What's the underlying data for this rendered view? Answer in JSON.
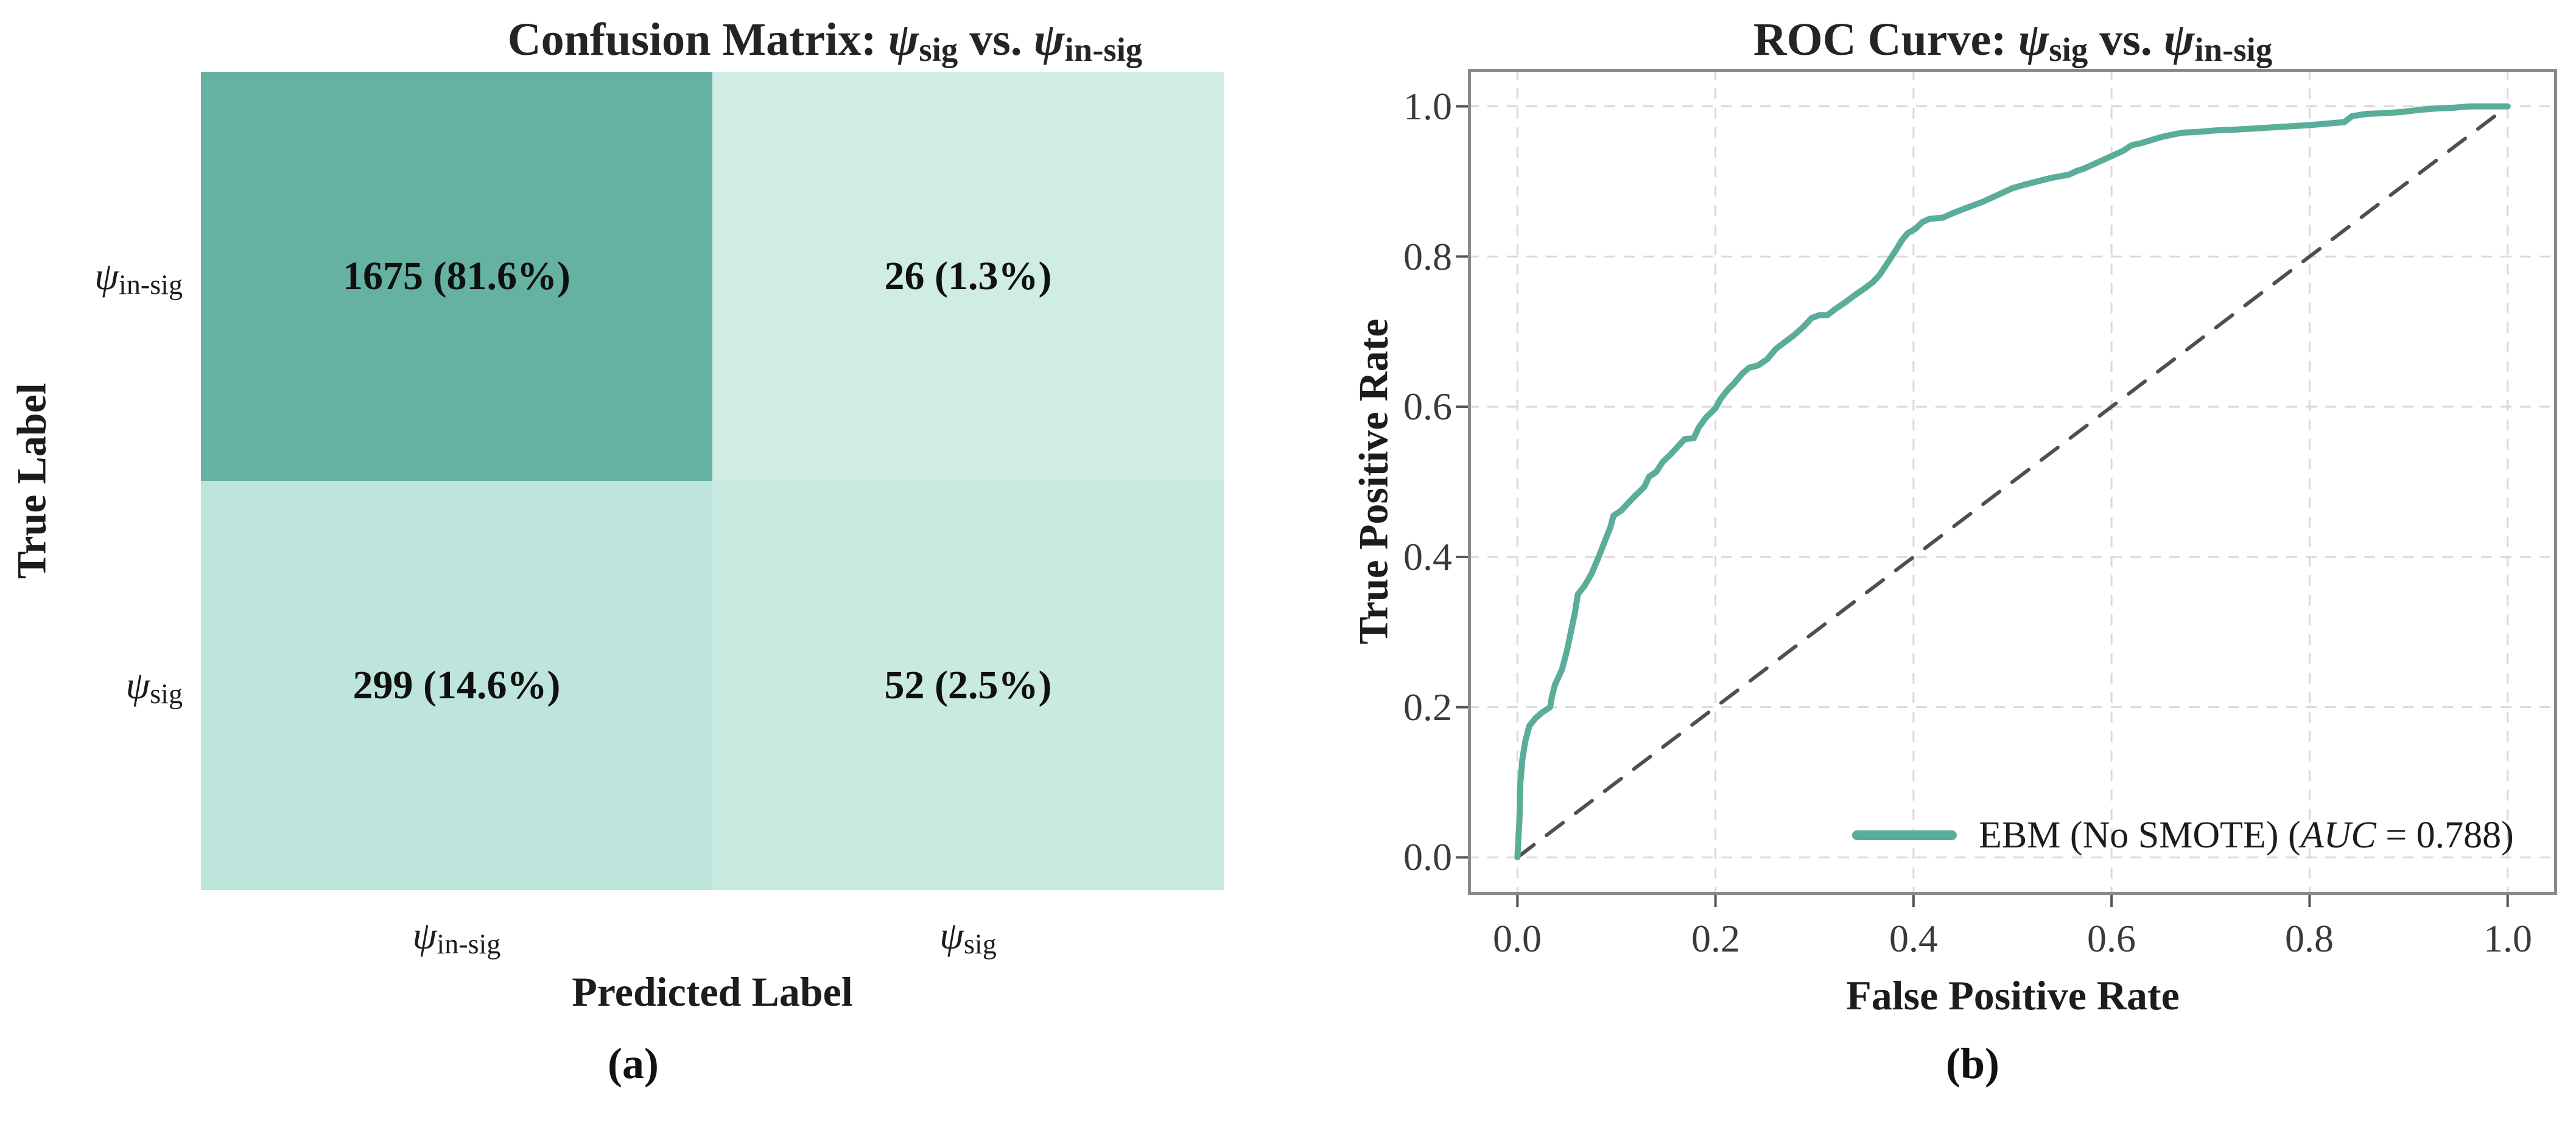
{
  "figure": {
    "caption_a": "(a)",
    "caption_b": "(b)"
  },
  "panel_a": {
    "title": {
      "prefix": "Confusion Matrix: ",
      "psi": "ψ",
      "sub_sig": "sig",
      "mid": " vs. ",
      "sub_insig": "in-sig"
    },
    "xlabel": "Predicted Label",
    "ylabel": "True Label",
    "row_labels": [
      {
        "psi": "ψ",
        "sub": "in-sig"
      },
      {
        "psi": "ψ",
        "sub": "sig"
      }
    ],
    "col_labels": [
      {
        "psi": "ψ",
        "sub": "in-sig"
      },
      {
        "psi": "ψ",
        "sub": "sig"
      }
    ],
    "cells": [
      {
        "label": "1675 (81.6%)",
        "color": "#65b2a3"
      },
      {
        "label": "26 (1.3%)",
        "color": "#cfede4"
      },
      {
        "label": "299 (14.6%)",
        "color": "#bee5dc"
      },
      {
        "label": "52 (2.5%)",
        "color": "#c9eae0"
      }
    ]
  },
  "panel_b": {
    "title": {
      "prefix": "ROC Curve: ",
      "psi": "ψ",
      "sub_sig": "sig",
      "mid": " vs. ",
      "sub_insig": "in-sig"
    },
    "xlabel": "False Positive Rate",
    "ylabel": "True Positive Rate",
    "xtick_labels": [
      "0.0",
      "0.2",
      "0.4",
      "0.6",
      "0.8",
      "1.0"
    ],
    "ytick_labels": [
      "0.0",
      "0.2",
      "0.4",
      "0.6",
      "0.8",
      "1.0"
    ],
    "legend": {
      "prefix": "EBM (No SMOTE) (",
      "auc_word": "AUC",
      "suffix": " = 0.788)"
    }
  },
  "colors": {
    "roc_curve": "#5aad99",
    "diagonal": "#4f4f4f",
    "grid": "#d9d9d9",
    "spine": "#8a8a8a",
    "tick_mark": "#555555"
  },
  "chart_data": [
    {
      "type": "heatmap",
      "title": "Confusion Matrix: ψ_sig vs. ψ_in-sig",
      "xlabel": "Predicted Label",
      "ylabel": "True Label",
      "x_categories": [
        "ψ_in-sig",
        "ψ_sig"
      ],
      "y_categories": [
        "ψ_in-sig",
        "ψ_sig"
      ],
      "counts": [
        [
          1675,
          26
        ],
        [
          299,
          52
        ]
      ],
      "percents": [
        [
          81.6,
          1.3
        ],
        [
          14.6,
          2.5
        ]
      ],
      "cell_labels": [
        [
          "1675 (81.6%)",
          "26 (1.3%)"
        ],
        [
          "299 (14.6%)",
          "52 (2.5%)"
        ]
      ],
      "cell_colors": [
        [
          "#65b2a3",
          "#cfede4"
        ],
        [
          "#bee5dc",
          "#c9eae0"
        ]
      ]
    },
    {
      "type": "line",
      "title": "ROC Curve: ψ_sig vs. ψ_in-sig",
      "xlabel": "False Positive Rate",
      "ylabel": "True Positive Rate",
      "xlim": [
        -0.05,
        1.05
      ],
      "ylim": [
        -0.05,
        1.05
      ],
      "xticks": [
        0,
        0.2,
        0.4,
        0.6,
        0.8,
        1
      ],
      "yticks": [
        0,
        0.2,
        0.4,
        0.6,
        0.8,
        1
      ],
      "grid": true,
      "legend_position": "lower right",
      "series": [
        {
          "name": "EBM (No SMOTE)",
          "auc": 0.788,
          "color": "#5aad99",
          "style": "solid",
          "points": [
            [
              0,
              0
            ],
            [
              0.002,
              0.05
            ],
            [
              0.003,
              0.1
            ],
            [
              0.005,
              0.13
            ],
            [
              0.008,
              0.155
            ],
            [
              0.012,
              0.175
            ],
            [
              0.018,
              0.185
            ],
            [
              0.025,
              0.193
            ],
            [
              0.033,
              0.2
            ],
            [
              0.035,
              0.215
            ],
            [
              0.038,
              0.23
            ],
            [
              0.045,
              0.25
            ],
            [
              0.05,
              0.275
            ],
            [
              0.054,
              0.3
            ],
            [
              0.058,
              0.325
            ],
            [
              0.061,
              0.35
            ],
            [
              0.068,
              0.362
            ],
            [
              0.075,
              0.378
            ],
            [
              0.082,
              0.4
            ],
            [
              0.088,
              0.42
            ],
            [
              0.094,
              0.44
            ],
            [
              0.097,
              0.455
            ],
            [
              0.105,
              0.462
            ],
            [
              0.112,
              0.472
            ],
            [
              0.12,
              0.483
            ],
            [
              0.128,
              0.493
            ],
            [
              0.133,
              0.507
            ],
            [
              0.14,
              0.513
            ],
            [
              0.147,
              0.527
            ],
            [
              0.155,
              0.537
            ],
            [
              0.162,
              0.547
            ],
            [
              0.169,
              0.557
            ],
            [
              0.178,
              0.558
            ],
            [
              0.183,
              0.572
            ],
            [
              0.19,
              0.585
            ],
            [
              0.2,
              0.598
            ],
            [
              0.205,
              0.61
            ],
            [
              0.212,
              0.622
            ],
            [
              0.218,
              0.63
            ],
            [
              0.227,
              0.644
            ],
            [
              0.234,
              0.652
            ],
            [
              0.243,
              0.655
            ],
            [
              0.252,
              0.663
            ],
            [
              0.261,
              0.677
            ],
            [
              0.27,
              0.686
            ],
            [
              0.28,
              0.696
            ],
            [
              0.29,
              0.708
            ],
            [
              0.297,
              0.718
            ],
            [
              0.305,
              0.722
            ],
            [
              0.313,
              0.722
            ],
            [
              0.322,
              0.731
            ],
            [
              0.331,
              0.739
            ],
            [
              0.34,
              0.748
            ],
            [
              0.35,
              0.757
            ],
            [
              0.359,
              0.766
            ],
            [
              0.366,
              0.776
            ],
            [
              0.373,
              0.79
            ],
            [
              0.381,
              0.806
            ],
            [
              0.388,
              0.821
            ],
            [
              0.394,
              0.831
            ],
            [
              0.402,
              0.837
            ],
            [
              0.409,
              0.846
            ],
            [
              0.416,
              0.85
            ],
            [
              0.43,
              0.852
            ],
            [
              0.44,
              0.858
            ],
            [
              0.45,
              0.863
            ],
            [
              0.46,
              0.868
            ],
            [
              0.47,
              0.873
            ],
            [
              0.48,
              0.879
            ],
            [
              0.49,
              0.885
            ],
            [
              0.5,
              0.891
            ],
            [
              0.513,
              0.896
            ],
            [
              0.525,
              0.9
            ],
            [
              0.54,
              0.905
            ],
            [
              0.557,
              0.909
            ],
            [
              0.565,
              0.914
            ],
            [
              0.572,
              0.917
            ],
            [
              0.582,
              0.923
            ],
            [
              0.592,
              0.929
            ],
            [
              0.602,
              0.935
            ],
            [
              0.612,
              0.941
            ],
            [
              0.62,
              0.948
            ],
            [
              0.63,
              0.951
            ],
            [
              0.64,
              0.955
            ],
            [
              0.65,
              0.959
            ],
            [
              0.66,
              0.962
            ],
            [
              0.672,
              0.965
            ],
            [
              0.688,
              0.966
            ],
            [
              0.705,
              0.968
            ],
            [
              0.725,
              0.969
            ],
            [
              0.75,
              0.971
            ],
            [
              0.775,
              0.973
            ],
            [
              0.8,
              0.975
            ],
            [
              0.817,
              0.977
            ],
            [
              0.835,
              0.979
            ],
            [
              0.843,
              0.987
            ],
            [
              0.858,
              0.99
            ],
            [
              0.878,
              0.991
            ],
            [
              0.897,
              0.993
            ],
            [
              0.908,
              0.995
            ],
            [
              0.926,
              0.997
            ],
            [
              0.944,
              0.998
            ],
            [
              0.962,
              1
            ],
            [
              1,
              1
            ]
          ]
        },
        {
          "name": "chance diagonal",
          "color": "#4f4f4f",
          "style": "dashed",
          "points": [
            [
              0,
              0
            ],
            [
              1,
              1
            ]
          ]
        }
      ]
    }
  ]
}
